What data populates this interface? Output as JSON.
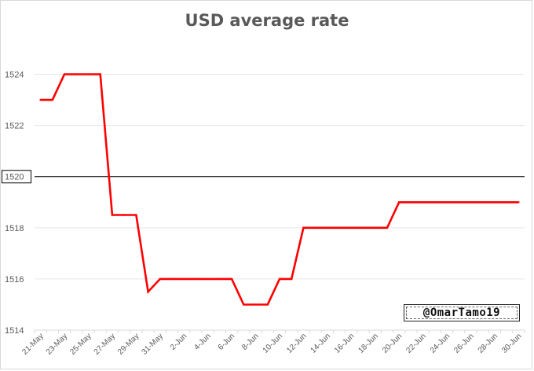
{
  "chart_data": {
    "type": "line",
    "title": "USD average rate",
    "xlabel": "",
    "ylabel": "",
    "ylim": [
      1514,
      1525
    ],
    "yticks": [
      1514,
      1516,
      1518,
      1520,
      1522,
      1524
    ],
    "highlighted_tick": 1520,
    "reference_line": 1520,
    "grid": true,
    "x_labels_shown": [
      "21-May",
      "23-May",
      "25-May",
      "27-May",
      "29-May",
      "31-May",
      "2-Jun",
      "4-Jun",
      "6-Jun",
      "8-Jun",
      "10-Jun",
      "12-Jun",
      "14-Jun",
      "16-Jun",
      "18-Jun",
      "20-Jun",
      "22-Jun",
      "24-Jun",
      "26-Jun",
      "28-Jun",
      "30-Jun"
    ],
    "series": [
      {
        "color": "#ff0000",
        "x": [
          "21-May",
          "22-May",
          "23-May",
          "24-May",
          "25-May",
          "26-May",
          "27-May",
          "28-May",
          "29-May",
          "30-May",
          "31-May",
          "1-Jun",
          "2-Jun",
          "3-Jun",
          "4-Jun",
          "5-Jun",
          "6-Jun",
          "7-Jun",
          "8-Jun",
          "9-Jun",
          "10-Jun",
          "11-Jun",
          "12-Jun",
          "13-Jun",
          "14-Jun",
          "15-Jun",
          "16-Jun",
          "17-Jun",
          "18-Jun",
          "19-Jun",
          "20-Jun",
          "21-Jun",
          "22-Jun",
          "23-Jun",
          "24-Jun",
          "25-Jun",
          "26-Jun",
          "27-Jun",
          "28-Jun",
          "29-Jun",
          "30-Jun"
        ],
        "values": [
          1523,
          1523,
          1524,
          1524,
          1524,
          1524,
          1518.5,
          1518.5,
          1518.5,
          1515.5,
          1516,
          1516,
          1516,
          1516,
          1516,
          1516,
          1516,
          1515,
          1515,
          1515,
          1516,
          1516,
          1518,
          1518,
          1518,
          1518,
          1518,
          1518,
          1518,
          1518,
          1519,
          1519,
          1519,
          1519,
          1519,
          1519,
          1519,
          1519,
          1519,
          1519,
          1519
        ]
      }
    ]
  },
  "watermark": "@OmarTamo19",
  "colors": {
    "line": "#ff0000",
    "grid": "#e6e6e6",
    "reference": "#000000",
    "title": "#595959"
  }
}
